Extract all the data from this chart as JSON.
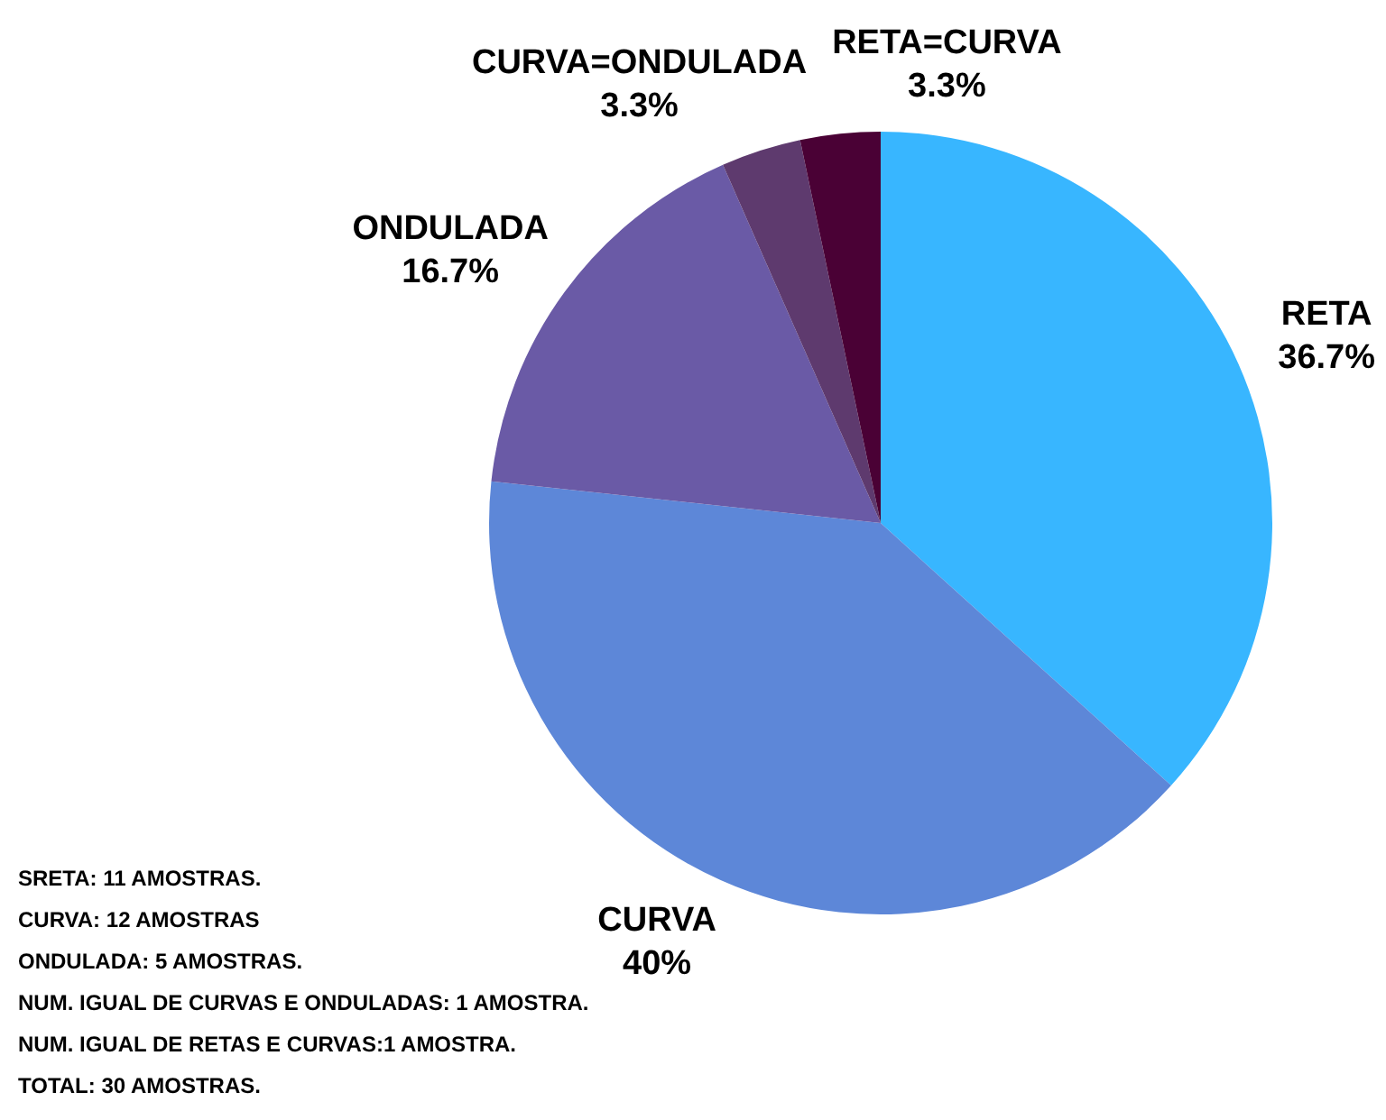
{
  "chart_data": {
    "type": "pie",
    "categories": [
      "RETA",
      "CURVA",
      "ONDULADA",
      "CURVA=ONDULADA",
      "RETA=CURVA"
    ],
    "values": [
      36.7,
      40,
      16.7,
      3.3,
      3.3
    ],
    "value_labels": [
      "36.7%",
      "40%",
      "16.7%",
      "3.3%",
      "3.3%"
    ],
    "colors": [
      "#38b6ff",
      "#5d87d8",
      "#6a5aa6",
      "#5e3a6e",
      "#4a0135"
    ],
    "legend": false,
    "annotations": [
      "SRETA: 11 AMOSTRAS.",
      "CURVA: 12 AMOSTRAS",
      "ONDULADA: 5 AMOSTRAS.",
      "NUM. IGUAL DE CURVAS E ONDULADAS: 1 AMOSTRA.",
      "NUM. IGUAL DE RETAS E CURVAS:1 AMOSTRA.",
      "TOTAL: 30 AMOSTRAS."
    ]
  }
}
